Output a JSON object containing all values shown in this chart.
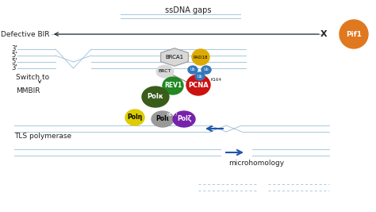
{
  "bg_color": "#ffffff",
  "line_color": "#a8c8dc",
  "text_color": "#222222",
  "title": "ssDNA gaps",
  "pif1_color": "#e07820",
  "polk_color": "#3a5c1a",
  "rev1_color": "#228822",
  "pcna_color": "#cc1111",
  "poln_color": "#ddcc00",
  "poll_color": "#999999",
  "polz_color": "#7722aa",
  "brca1_color": "#d8d8d8",
  "brct_color": "#d8d8d8",
  "rad18_color": "#ddaa00",
  "ub_color": "#3377bb",
  "arrow_color": "#2255aa",
  "defective_bir_text": "Defective BIR",
  "switch_text": "Switch to",
  "mmbir_text": "MMBIR",
  "tls_text": "TLS polymerase",
  "microhomology_text": "microhomology",
  "fig_w": 4.74,
  "fig_h": 2.67,
  "dpi": 100
}
